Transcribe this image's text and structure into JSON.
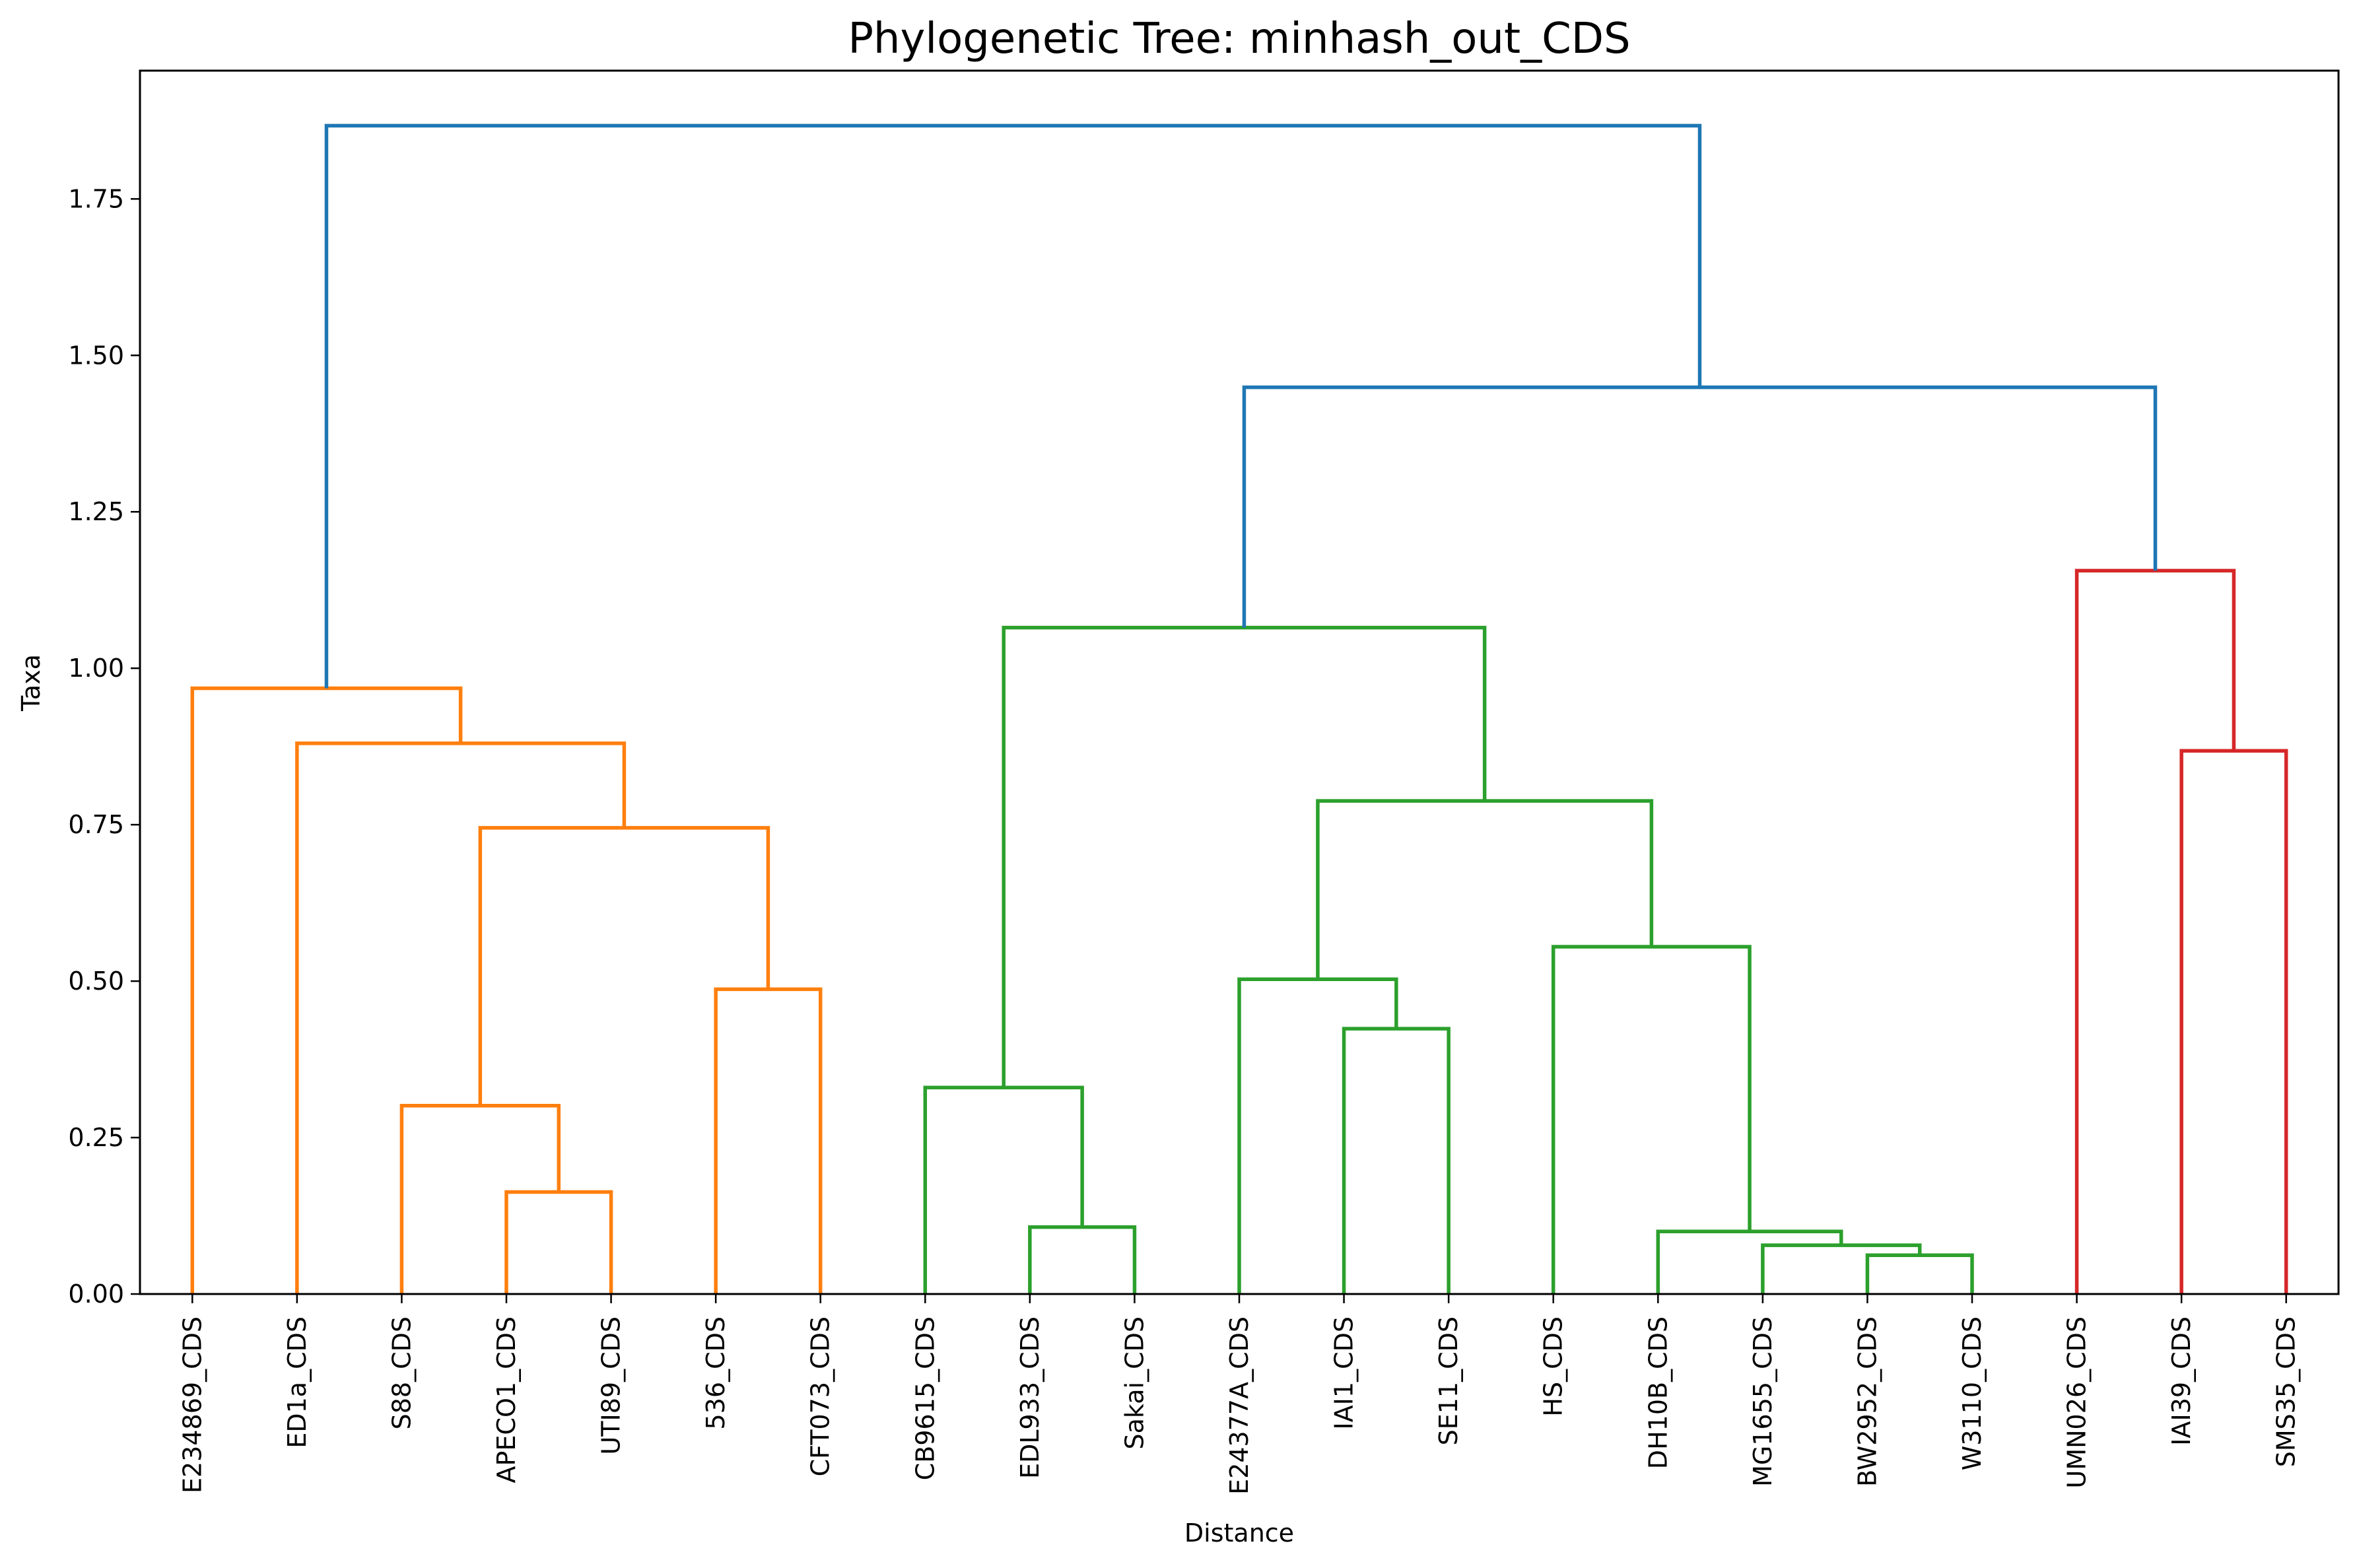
{
  "chart_data": {
    "type": "dendrogram",
    "title": "Phylogenetic Tree: minhash_out_CDS",
    "xlabel": "Distance",
    "ylabel": "Taxa",
    "ylim": [
      0,
      1.955
    ],
    "yticks": [
      0.0,
      0.25,
      0.5,
      0.75,
      1.0,
      1.25,
      1.5,
      1.75
    ],
    "ytick_labels": [
      "0.00",
      "0.25",
      "0.50",
      "0.75",
      "1.00",
      "1.25",
      "1.50",
      "1.75"
    ],
    "grid": false,
    "leaves": [
      "E234869_CDS",
      "ED1a_CDS",
      "S88_CDS",
      "APECO1_CDS",
      "UTI89_CDS",
      "536_CDS",
      "CFT073_CDS",
      "CB9615_CDS",
      "EDL933_CDS",
      "Sakai_CDS",
      "E24377A_CDS",
      "IAI1_CDS",
      "SE11_CDS",
      "HS_CDS",
      "DH10B_CDS",
      "MG1655_CDS",
      "BW2952_CDS",
      "W3110_CDS",
      "UMN026_CDS",
      "IAI39_CDS",
      "SMS35_CDS"
    ],
    "colors": {
      "orange": "#ff7f0e",
      "green": "#2ca02c",
      "red": "#d62728",
      "blue": "#1f77b4"
    },
    "merges": [
      {
        "left": "L3",
        "right": "L4",
        "height": 0.163,
        "color": "orange"
      },
      {
        "left": "L2",
        "right": "M0",
        "height": 0.301,
        "color": "orange"
      },
      {
        "left": "L5",
        "right": "L6",
        "height": 0.487,
        "color": "orange"
      },
      {
        "left": "M1",
        "right": "M2",
        "height": 0.745,
        "color": "orange"
      },
      {
        "left": "L1",
        "right": "M3",
        "height": 0.88,
        "color": "orange"
      },
      {
        "left": "L0",
        "right": "M4",
        "height": 0.968,
        "color": "orange"
      },
      {
        "left": "L8",
        "right": "L9",
        "height": 0.107,
        "color": "green"
      },
      {
        "left": "L7",
        "right": "M6",
        "height": 0.33,
        "color": "green"
      },
      {
        "left": "L11",
        "right": "L12",
        "height": 0.424,
        "color": "green"
      },
      {
        "left": "L10",
        "right": "M8",
        "height": 0.503,
        "color": "green"
      },
      {
        "left": "L16",
        "right": "L17",
        "height": 0.062,
        "color": "green"
      },
      {
        "left": "L15",
        "right": "M10",
        "height": 0.078,
        "color": "green"
      },
      {
        "left": "L14",
        "right": "M11",
        "height": 0.1,
        "color": "green"
      },
      {
        "left": "L13",
        "right": "M12",
        "height": 0.555,
        "color": "green"
      },
      {
        "left": "M9",
        "right": "M13",
        "height": 0.788,
        "color": "green"
      },
      {
        "left": "M7",
        "right": "M14",
        "height": 1.065,
        "color": "green"
      },
      {
        "left": "L19",
        "right": "L20",
        "height": 0.868,
        "color": "red"
      },
      {
        "left": "L18",
        "right": "M16",
        "height": 1.156,
        "color": "red"
      },
      {
        "left": "M15",
        "right": "M17",
        "height": 1.449,
        "color": "blue"
      },
      {
        "left": "M5",
        "right": "M18",
        "height": 1.867,
        "color": "blue"
      }
    ]
  }
}
